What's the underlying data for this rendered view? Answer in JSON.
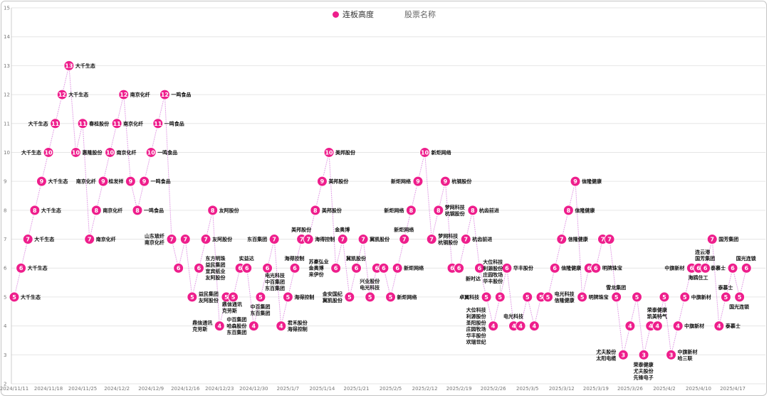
{
  "legend": {
    "items": [
      {
        "label": "连板高度",
        "active": true
      },
      {
        "label": "股票名称",
        "active": false
      }
    ]
  },
  "colors": {
    "marker": "#ee1e8c",
    "line": "#e3a3e6",
    "grid": "#e6e6e6",
    "inactive_legend": "#666666"
  },
  "chart_data": {
    "type": "line",
    "title": "",
    "xlabel": "",
    "ylabel": "",
    "ylim": [
      2,
      15
    ],
    "yticks": [
      2,
      3,
      4,
      5,
      6,
      7,
      8,
      9,
      10,
      11,
      12,
      13,
      14,
      15
    ],
    "grid": true,
    "legend_position": "top-center",
    "xticks": [
      "2024/11/11",
      "2024/11/18",
      "2024/11/25",
      "2024/12/2",
      "2024/12/9",
      "2024/12/16",
      "2024/12/23",
      "2024/12/30",
      "2025/1/7",
      "2025/1/14",
      "2025/1/21",
      "2025/2/5",
      "2025/2/12",
      "2025/2/19",
      "2025/2/26",
      "2025/3/5",
      "2025/3/12",
      "2025/3/19",
      "2025/3/26",
      "2025/4/2",
      "2025/4/10",
      "2025/4/17"
    ],
    "series": [
      {
        "name": "连板高度",
        "points": [
          {
            "date": "2024/11/11",
            "value": 5,
            "names": [
              "大千生态"
            ]
          },
          {
            "date": "2024/11/12",
            "value": 6,
            "names": [
              "大千生态"
            ]
          },
          {
            "date": "2024/11/13",
            "value": 7,
            "names": [
              "大千生态"
            ]
          },
          {
            "date": "2024/11/14",
            "value": 8,
            "names": [
              "大千生态"
            ]
          },
          {
            "date": "2024/11/15",
            "value": 9,
            "names": [
              "大千生态"
            ]
          },
          {
            "date": "2024/11/18",
            "value": 10,
            "names": [
              "大千生态"
            ]
          },
          {
            "date": "2024/11/19",
            "value": 11,
            "names": [
              "大千生态"
            ]
          },
          {
            "date": "2024/11/20",
            "value": 12,
            "names": [
              "大千生态"
            ]
          },
          {
            "date": "2024/11/21",
            "value": 13,
            "names": [
              "大千生态"
            ]
          },
          {
            "date": "2024/11/22",
            "value": 10,
            "names": [
              "惠隆股份"
            ]
          },
          {
            "date": "2024/11/25",
            "value": 11,
            "names": [
              "春桂股份"
            ]
          },
          {
            "date": "2024/11/26",
            "value": 7,
            "names": [
              "南京化纤"
            ]
          },
          {
            "date": "2024/11/27",
            "value": 8,
            "names": [
              "南京化纤"
            ]
          },
          {
            "date": "2024/11/28",
            "value": 9,
            "names": [
              "南京化纤"
            ]
          },
          {
            "date": "2024/11/29",
            "value": 10,
            "names": [
              "南京化纤"
            ]
          },
          {
            "date": "2024/12/2",
            "value": 11,
            "names": [
              "南京化纤"
            ]
          },
          {
            "date": "2024/12/3",
            "value": 12,
            "names": [
              "南京化纤"
            ]
          },
          {
            "date": "2024/12/4",
            "value": 9,
            "names": [
              "桂发祥"
            ]
          },
          {
            "date": "2024/12/5",
            "value": 8,
            "names": [
              "一鸣食品"
            ]
          },
          {
            "date": "2024/12/6",
            "value": 9,
            "names": [
              "一鸣食品"
            ]
          },
          {
            "date": "2024/12/9",
            "value": 10,
            "names": [
              "一鸣食品"
            ]
          },
          {
            "date": "2024/12/10",
            "value": 11,
            "names": [
              "一鸣食品"
            ]
          },
          {
            "date": "2024/12/11",
            "value": 12,
            "names": [
              "一鸣食品"
            ]
          },
          {
            "date": "2024/12/12",
            "value": 7,
            "names": [
              "山东玻纤",
              "南京化纤"
            ]
          },
          {
            "date": "2024/12/13",
            "value": 6,
            "names": []
          },
          {
            "date": "2024/12/16",
            "value": 7,
            "names": []
          },
          {
            "date": "2024/12/17",
            "value": 5,
            "names": [
              "益民集团",
              "友阿股份"
            ]
          },
          {
            "date": "2024/12/18",
            "value": 6,
            "names": [
              "东方明珠",
              "益民集团",
              "宜宾纸业",
              "友阿股份"
            ]
          },
          {
            "date": "2024/12/19",
            "value": 7,
            "names": [
              "友阿股份"
            ]
          },
          {
            "date": "2024/12/20",
            "value": 8,
            "names": [
              "友阿股份"
            ]
          },
          {
            "date": "2024/12/23",
            "value": 4,
            "names": [
              "鼎信通讯",
              "克劳斯"
            ]
          },
          {
            "date": "2024/12/24",
            "value": 5,
            "names": [
              "鼎信通讯",
              "克劳斯"
            ]
          },
          {
            "date": "2024/12/25",
            "value": 5,
            "names": []
          },
          {
            "date": "2024/12/26",
            "value": 6,
            "names": []
          },
          {
            "date": "2024/12/27",
            "value": 6,
            "names": [
              "实益达"
            ]
          },
          {
            "date": "2024/12/30",
            "value": 4,
            "names": [
              "中百集团",
              "哈森股份",
              "东百集团"
            ]
          },
          {
            "date": "2024/12/31",
            "value": 5,
            "names": [
              "中百集团",
              "东百集团"
            ]
          },
          {
            "date": "2025/1/2",
            "value": 6,
            "names": [
              "电光科技",
              "中百集团",
              "东百集团"
            ]
          },
          {
            "date": "2025/1/3",
            "value": 7,
            "names": [
              "东百集团"
            ]
          },
          {
            "date": "2025/1/6",
            "value": 4,
            "names": [
              "君禾股份",
              "海得控制"
            ]
          },
          {
            "date": "2025/1/7",
            "value": 5,
            "names": [
              "海得控制"
            ]
          },
          {
            "date": "2025/1/8",
            "value": 6,
            "names": [
              "海得控制"
            ]
          },
          {
            "date": "2025/1/9",
            "value": 7,
            "names": [
              "美邦股份"
            ]
          },
          {
            "date": "2025/1/10",
            "value": 7,
            "names": [
              "海得控制"
            ]
          },
          {
            "date": "2025/1/13",
            "value": 8,
            "names": [
              "美邦股份"
            ]
          },
          {
            "date": "2025/1/14",
            "value": 9,
            "names": [
              "美邦股份"
            ]
          },
          {
            "date": "2025/1/15",
            "value": 10,
            "names": [
              "美邦股份"
            ]
          },
          {
            "date": "2025/1/16",
            "value": 6,
            "names": [
              "苏豪弘业",
              "金奥博",
              "来伊份"
            ]
          },
          {
            "date": "2025/1/17",
            "value": 7,
            "names": [
              "金奥博"
            ]
          },
          {
            "date": "2025/1/20",
            "value": 5,
            "names": [
              "金安国纪",
              "冀凯股份"
            ]
          },
          {
            "date": "2025/1/21",
            "value": 6,
            "names": [
              "冀凯股份"
            ]
          },
          {
            "date": "2025/1/22",
            "value": 7,
            "names": [
              "冀凯股份"
            ]
          },
          {
            "date": "2025/1/23",
            "value": 5,
            "names": [
              "兴业股份",
              "电光科技"
            ]
          },
          {
            "date": "2025/1/24",
            "value": 6,
            "names": []
          },
          {
            "date": "2025/1/27",
            "value": 6,
            "names": []
          },
          {
            "date": "2025/2/5",
            "value": 5,
            "names": [
              "新炬网络"
            ]
          },
          {
            "date": "2025/2/6",
            "value": 6,
            "names": [
              "新炬网络"
            ]
          },
          {
            "date": "2025/2/7",
            "value": 7,
            "names": [
              "新炬网络"
            ]
          },
          {
            "date": "2025/2/10",
            "value": 8,
            "names": [
              "新炬网络"
            ]
          },
          {
            "date": "2025/2/11",
            "value": 9,
            "names": [
              "新炬网络"
            ]
          },
          {
            "date": "2025/2/12",
            "value": 10,
            "names": [
              "新炬网络"
            ]
          },
          {
            "date": "2025/2/13",
            "value": 7,
            "names": [
              "梦网科技",
              "杭钢股份"
            ]
          },
          {
            "date": "2025/2/14",
            "value": 8,
            "names": [
              "梦网科技",
              "杭钢股份"
            ]
          },
          {
            "date": "2025/2/17",
            "value": 9,
            "names": [
              "杭钢股份"
            ]
          },
          {
            "date": "2025/2/18",
            "value": 6,
            "names": []
          },
          {
            "date": "2025/2/19",
            "value": 6,
            "names": []
          },
          {
            "date": "2025/2/20",
            "value": 7,
            "names": [
              "杭齿前进"
            ]
          },
          {
            "date": "2025/2/21",
            "value": 8,
            "names": [
              "杭齿前进"
            ]
          },
          {
            "date": "2025/2/24",
            "value": 6,
            "names": [
              "新时达"
            ]
          },
          {
            "date": "2025/2/25",
            "value": 5,
            "names": [
              "卓翼科技"
            ]
          },
          {
            "date": "2025/2/26",
            "value": 4,
            "names": [
              "大位科技",
              "利源股份",
              "圣阳股份",
              "庄园牧场",
              "华丰股份",
              "欢瑞世纪"
            ]
          },
          {
            "date": "2025/2/27",
            "value": 5,
            "names": [
              "大位科技",
              "利源股份",
              "庄园牧场",
              "华丰股份"
            ]
          },
          {
            "date": "2025/2/28",
            "value": 6,
            "names": [
              "华丰股份"
            ]
          },
          {
            "date": "2025/3/3",
            "value": 4,
            "names": [
              "电光科技"
            ]
          },
          {
            "date": "2025/3/4",
            "value": 4,
            "names": []
          },
          {
            "date": "2025/3/5",
            "value": 5,
            "names": []
          },
          {
            "date": "2025/3/6",
            "value": 4,
            "names": []
          },
          {
            "date": "2025/3/7",
            "value": 5,
            "names": []
          },
          {
            "date": "2025/3/10",
            "value": 5,
            "names": [
              "电光科技",
              "信隆健康"
            ]
          },
          {
            "date": "2025/3/11",
            "value": 6,
            "names": [
              "信隆健康"
            ]
          },
          {
            "date": "2025/3/12",
            "value": 7,
            "names": [
              "信隆健康"
            ]
          },
          {
            "date": "2025/3/13",
            "value": 8,
            "names": [
              "信隆健康"
            ]
          },
          {
            "date": "2025/3/14",
            "value": 9,
            "names": [
              "信隆健康"
            ]
          },
          {
            "date": "2025/3/17",
            "value": 5,
            "names": [
              "明牌珠宝"
            ]
          },
          {
            "date": "2025/3/18",
            "value": 6,
            "names": []
          },
          {
            "date": "2025/3/19",
            "value": 6,
            "names": [
              "明牌珠宝"
            ]
          },
          {
            "date": "2025/3/20",
            "value": 7,
            "names": []
          },
          {
            "date": "2025/3/21",
            "value": 7,
            "names": []
          },
          {
            "date": "2025/3/24",
            "value": 5,
            "names": [
              "雪龙集团"
            ]
          },
          {
            "date": "2025/3/25",
            "value": 3,
            "names": [
              "尤夫股份",
              "太阳电缆"
            ]
          },
          {
            "date": "2025/3/26",
            "value": 4,
            "names": []
          },
          {
            "date": "2025/3/27",
            "value": 5,
            "names": []
          },
          {
            "date": "2025/3/28",
            "value": 3,
            "names": [
              "荣泰健康",
              "尤夫股份",
              "先锋电子"
            ]
          },
          {
            "date": "2025/3/31",
            "value": 4,
            "names": []
          },
          {
            "date": "2025/4/1",
            "value": 4,
            "names": [
              "荣泰健康",
              "凯美特气"
            ]
          },
          {
            "date": "2025/4/2",
            "value": 5,
            "names": []
          },
          {
            "date": "2025/4/3",
            "value": 3,
            "names": [
              "中旗新材",
              "哈三联"
            ]
          },
          {
            "date": "2025/4/7",
            "value": 4,
            "names": [
              "中旗新材"
            ]
          },
          {
            "date": "2025/4/8",
            "value": 5,
            "names": [
              "中旗新材"
            ]
          },
          {
            "date": "2025/4/9",
            "value": 6,
            "names": [
              "中旗新材"
            ]
          },
          {
            "date": "2025/4/10",
            "value": 6,
            "names": [
              "海鸥住工"
            ]
          },
          {
            "date": "2025/4/11",
            "value": 6,
            "names": [
              "连云港",
              "国芳集团"
            ]
          },
          {
            "date": "2025/4/14",
            "value": 7,
            "names": [
              "国芳集团"
            ]
          },
          {
            "date": "2025/4/15",
            "value": 4,
            "names": [
              "泰慕士"
            ]
          },
          {
            "date": "2025/4/16",
            "value": 5,
            "names": [
              "泰慕士"
            ]
          },
          {
            "date": "2025/4/17",
            "value": 6,
            "names": [
              "泰慕士"
            ]
          },
          {
            "date": "2025/4/18",
            "value": 5,
            "names": [
              "国光连锁"
            ]
          },
          {
            "date": "2025/4/21",
            "value": 6,
            "names": [
              "国光连锁"
            ]
          }
        ]
      }
    ]
  }
}
